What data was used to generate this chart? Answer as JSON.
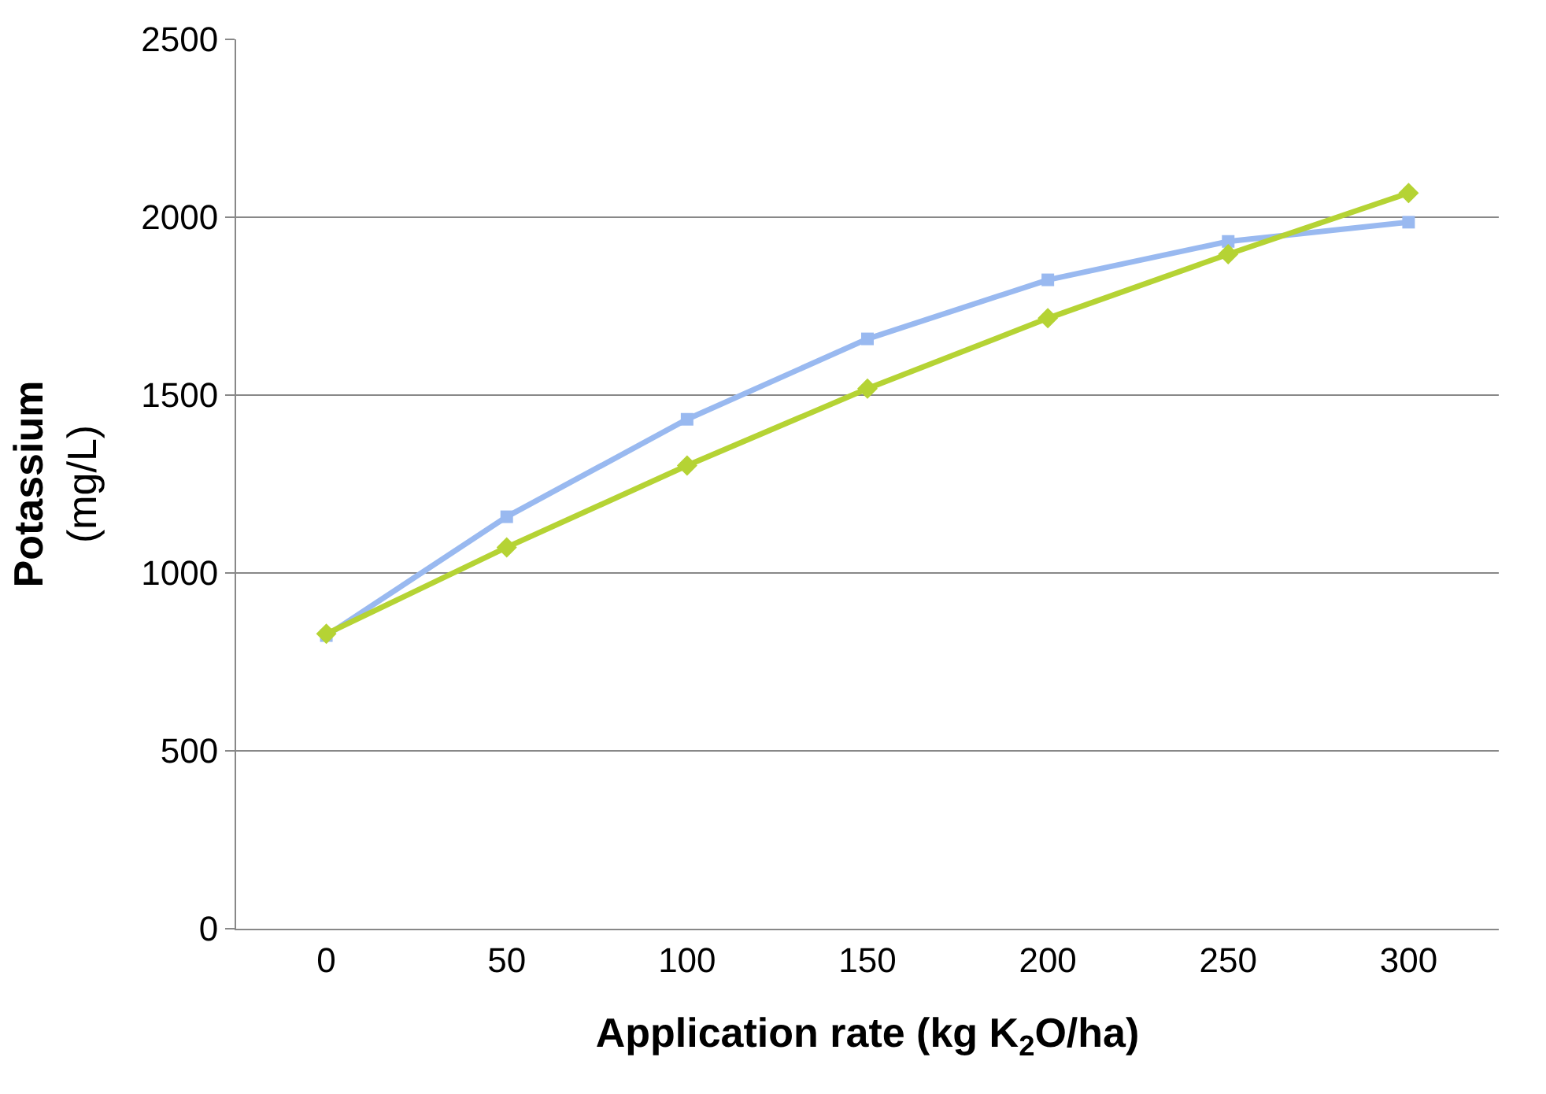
{
  "chart_data": {
    "type": "line",
    "xlabel": "Application rate (kg K$_{2}$O/ha)",
    "ylabel": "Potassium\n(mg/L)",
    "categories": [
      "0",
      "50",
      "100",
      "150",
      "200",
      "250",
      "300"
    ],
    "series": [
      {
        "color": "#99b9f0",
        "marker": "square",
        "values": [
          824,
          1158,
          1432,
          1658,
          1824,
          1932,
          1986
        ]
      },
      {
        "color": "#b5d334",
        "marker": "diamond",
        "values": [
          829,
          1072,
          1302,
          1518,
          1716,
          1896,
          2068
        ]
      }
    ],
    "ylim": [
      0,
      2500
    ],
    "yticks": [
      0,
      500,
      1000,
      1500,
      2000,
      2500
    ],
    "grid": "y",
    "line_style": "solid"
  }
}
